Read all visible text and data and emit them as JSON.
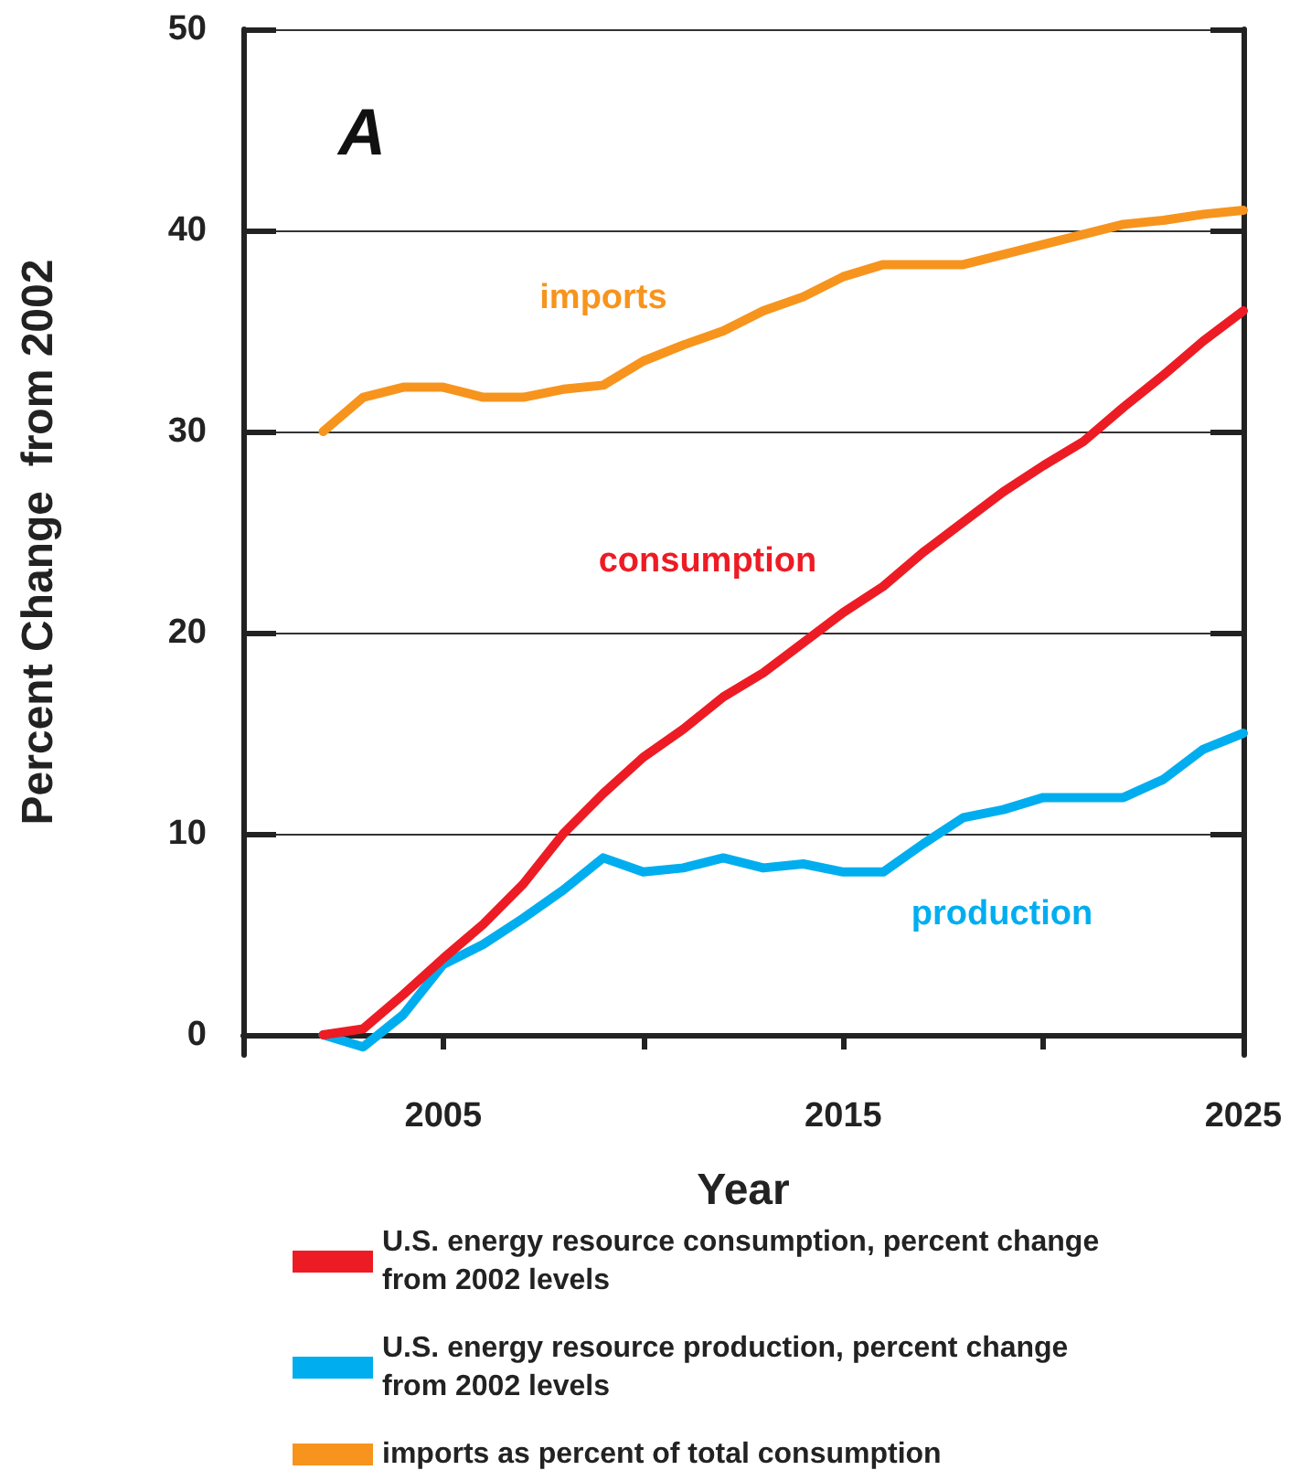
{
  "chart_data": {
    "type": "line",
    "xlabel": "Year",
    "ylabel": "Percent Change  from 2002",
    "x": [
      2002,
      2003,
      2004,
      2005,
      2006,
      2007,
      2008,
      2009,
      2010,
      2011,
      2012,
      2013,
      2014,
      2015,
      2016,
      2017,
      2018,
      2019,
      2020,
      2021,
      2022,
      2023,
      2024,
      2025
    ],
    "series": [
      {
        "name": "imports as percent of total consumption",
        "color": "#f7941d",
        "values": [
          30,
          31.7,
          32.2,
          32.2,
          31.7,
          31.7,
          32.1,
          32.3,
          33.5,
          34.3,
          35,
          36,
          36.7,
          37.7,
          38.3,
          38.3,
          38.3,
          38.8,
          39.3,
          39.8,
          40.3,
          40.5,
          40.8,
          41
        ]
      },
      {
        "name": "U.S. energy resource consumption, percent change from 2002 levels",
        "color": "#ed1c24",
        "values": [
          0,
          0.3,
          2,
          3.8,
          5.5,
          7.5,
          10,
          12,
          13.8,
          15.2,
          16.8,
          18,
          19.5,
          21,
          22.3,
          24,
          25.5,
          27,
          28.3,
          29.5,
          31.2,
          32.8,
          34.5,
          36
        ]
      },
      {
        "name": "U.S. energy resource production, percent change from 2002 levels",
        "color": "#00aeef",
        "values": [
          0,
          -0.6,
          1,
          3.5,
          4.5,
          5.8,
          7.2,
          8.8,
          8.1,
          8.3,
          8.8,
          8.3,
          8.5,
          8.1,
          8.1,
          9.5,
          10.8,
          11.2,
          11.8,
          11.8,
          11.8,
          12.7,
          14.2,
          15
        ]
      }
    ],
    "annotations": [
      "imports",
      "consumption",
      "production",
      "A"
    ],
    "xlim": [
      2000,
      2025
    ],
    "xticks": [
      {
        "value": 2005,
        "label": "2005"
      },
      {
        "value": 2010,
        "label": null
      },
      {
        "value": 2015,
        "label": "2015"
      },
      {
        "value": 2020,
        "label": null
      },
      {
        "value": 2025,
        "label": "2025"
      }
    ],
    "ylim": [
      -1,
      50
    ],
    "yticks": [
      0,
      10,
      20,
      30,
      40,
      50
    ],
    "grid": "y",
    "legend": "bottom",
    "marker": "none",
    "line_style": "solid"
  }
}
